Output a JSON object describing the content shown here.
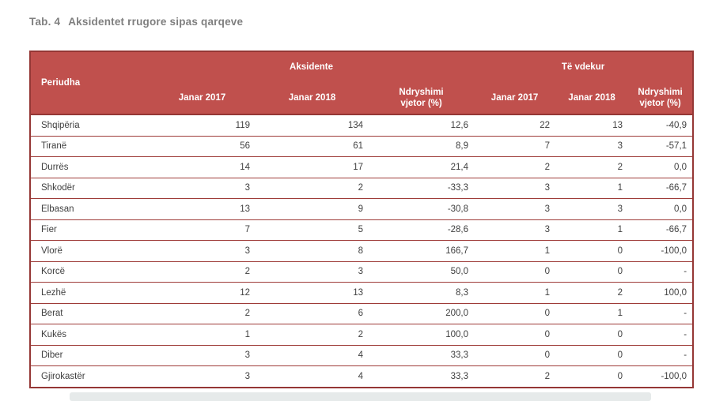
{
  "title": {
    "prefix": "Tab. 4",
    "text": "Aksidentet rrugore sipas qarqeve"
  },
  "table": {
    "row_header": "Periudha",
    "groups": [
      {
        "label": "Aksidente",
        "columns": [
          "Janar 2017",
          "Janar 2018",
          "Ndryshimi vjetor (%)"
        ]
      },
      {
        "label": "Të vdekur",
        "columns": [
          "Janar 2017",
          "Janar 2018",
          "Ndryshimi vjetor (%)"
        ]
      }
    ],
    "colors": {
      "header_bg": "#c0504d",
      "border": "#953735",
      "header_text": "#ffffff",
      "body_text": "#3f3f3f",
      "title_text": "#7f7f7f"
    }
  },
  "chart_data": {
    "type": "table",
    "title": "Tab. 4 Aksidentet rrugore sipas qarqeve",
    "columns": [
      "Periudha",
      "Aksidente Janar 2017",
      "Aksidente Janar 2018",
      "Aksidente Ndryshimi vjetor (%)",
      "Të vdekur Janar 2017",
      "Të vdekur Janar 2018",
      "Të vdekur Ndryshimi vjetor (%)"
    ],
    "rows": [
      [
        "Shqipëria",
        "119",
        "134",
        "12,6",
        "22",
        "13",
        "-40,9"
      ],
      [
        "Tiranë",
        "56",
        "61",
        "8,9",
        "7",
        "3",
        "-57,1"
      ],
      [
        "Durrës",
        "14",
        "17",
        "21,4",
        "2",
        "2",
        "0,0"
      ],
      [
        "Shkodër",
        "3",
        "2",
        "-33,3",
        "3",
        "1",
        "-66,7"
      ],
      [
        "Elbasan",
        "13",
        "9",
        "-30,8",
        "3",
        "3",
        "0,0"
      ],
      [
        "Fier",
        "7",
        "5",
        "-28,6",
        "3",
        "1",
        "-66,7"
      ],
      [
        "Vlorë",
        "3",
        "8",
        "166,7",
        "1",
        "0",
        "-100,0"
      ],
      [
        "Korcë",
        "2",
        "3",
        "50,0",
        "0",
        "0",
        "-"
      ],
      [
        "Lezhë",
        "12",
        "13",
        "8,3",
        "1",
        "2",
        "100,0"
      ],
      [
        "Berat",
        "2",
        "6",
        "200,0",
        "0",
        "1",
        "-"
      ],
      [
        "Kukës",
        "1",
        "2",
        "100,0",
        "0",
        "0",
        "-"
      ],
      [
        "Diber",
        "3",
        "4",
        "33,3",
        "0",
        "0",
        "-"
      ],
      [
        "Gjirokastër",
        "3",
        "4",
        "33,3",
        "2",
        "0",
        "-100,0"
      ]
    ]
  }
}
